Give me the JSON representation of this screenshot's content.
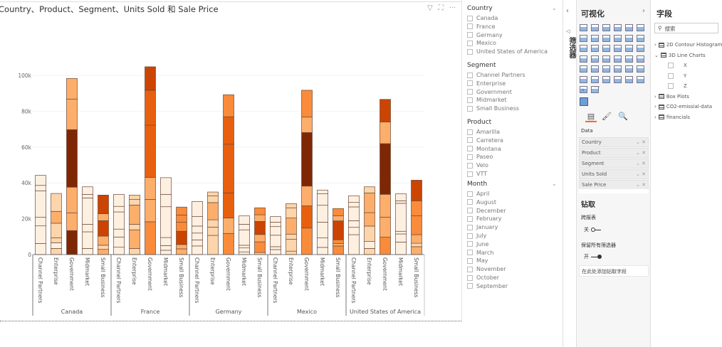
{
  "visual": {
    "title": "Country、Product、Segment、Units Sold 和 Sale Price",
    "header_icons": [
      "filter-icon",
      "focus-mode-icon",
      "more-options-icon"
    ]
  },
  "chart_data": {
    "type": "bar",
    "stacked": true,
    "title": "Country、Product、Segment、Units Sold 和 Sale Price",
    "ylim": [
      0,
      105000
    ],
    "y_ticks": [
      "0",
      "20k",
      "40k",
      "60k",
      "80k",
      "100k"
    ],
    "y_tick_values": [
      0,
      20000,
      40000,
      60000,
      80000,
      100000
    ],
    "grid": true,
    "legend": "none",
    "color_scale": [
      "#fef0e1",
      "#fdd5ab",
      "#fdae6b",
      "#f98b3a",
      "#e8600f",
      "#cc4402",
      "#7f2704"
    ],
    "groups": [
      {
        "country": "Canada",
        "bars": [
          {
            "segment": "Channel Partners",
            "stack_tops": [
              6.2,
              16,
              20.8,
              35.6,
              38.6,
              44.2
            ],
            "color_levels": [
              0,
              0,
              0,
              0,
              0,
              0
            ]
          },
          {
            "segment": "Enterprise",
            "stack_tops": [
              3.4,
              6.6,
              9.4,
              17.5,
              24.1,
              34.1
            ],
            "color_levels": [
              1,
              0,
              1,
              1,
              2,
              1
            ]
          },
          {
            "segment": "Government",
            "stack_tops": [
              13.4,
              23.3,
              37.6,
              69.7,
              86.8,
              98.3
            ],
            "color_levels": [
              6,
              2,
              2,
              6,
              2,
              2
            ]
          },
          {
            "segment": "Midmarket",
            "stack_tops": [
              3.4,
              12.7,
              16.9,
              31.6,
              33.6,
              37.8
            ],
            "color_levels": [
              0,
              0,
              0,
              0,
              0,
              0
            ]
          },
          {
            "segment": "Small Business",
            "stack_tops": [
              2.9,
              5.2,
              10.3,
              18.9,
              22.8,
              33.2
            ],
            "color_levels": [
              2,
              1,
              2,
              5,
              2,
              5
            ]
          }
        ]
      },
      {
        "country": "France",
        "bars": [
          {
            "segment": "Channel Partners",
            "stack_tops": [
              4.1,
              9.8,
              14.2,
              23.8,
              26.9,
              33.6
            ],
            "color_levels": [
              0,
              0,
              0,
              0,
              0,
              0
            ]
          },
          {
            "segment": "Enterprise",
            "stack_tops": [
              3.4,
              13.8,
              16.9,
              27.6,
              30.7,
              33.2
            ],
            "color_levels": [
              1,
              2,
              1,
              2,
              1,
              1
            ]
          },
          {
            "segment": "Government",
            "stack_tops": [
              18.3,
              30.8,
              43,
              72.2,
              91.7,
              104.8
            ],
            "color_levels": [
              3,
              2,
              2,
              4,
              4,
              5
            ]
          },
          {
            "segment": "Midmarket",
            "stack_tops": [
              2.4,
              5,
              9.5,
              26.7,
              33.6,
              42.9
            ],
            "color_levels": [
              0,
              0,
              0,
              0,
              0,
              0
            ]
          },
          {
            "segment": "Small Business",
            "stack_tops": [
              3.2,
              5.6,
              13,
              18,
              22.1,
              26.5
            ],
            "color_levels": [
              2,
              2,
              5,
              3,
              3,
              3
            ]
          }
        ]
      },
      {
        "country": "Germany",
        "bars": [
          {
            "segment": "Channel Partners",
            "stack_tops": [
              4.8,
              8.2,
              12,
              15.9,
              21.2,
              29.6
            ],
            "color_levels": [
              0,
              0,
              0,
              0,
              0,
              0
            ]
          },
          {
            "segment": "Enterprise",
            "stack_tops": [
              10.7,
              15.3,
              19.4,
              29,
              32.7,
              34.9
            ],
            "color_levels": [
              1,
              1,
              1,
              2,
              1,
              1
            ]
          },
          {
            "segment": "Government",
            "stack_tops": [
              11.8,
              20.4,
              34.4,
              61.6,
              76.9,
              89.2
            ],
            "color_levels": [
              3,
              2,
              4,
              4,
              4,
              3
            ]
          },
          {
            "segment": "Midmarket",
            "stack_tops": [
              1.5,
              3.7,
              5.2,
              13.8,
              16.9,
              21.6
            ],
            "color_levels": [
              0,
              0,
              0,
              0,
              0,
              0
            ]
          },
          {
            "segment": "Small Business",
            "stack_tops": [
              1.1,
              7.1,
              11.2,
              18.5,
              22.2,
              26.1
            ],
            "color_levels": [
              1,
              3,
              2,
              5,
              2,
              3
            ]
          }
        ]
      },
      {
        "country": "Mexico",
        "bars": [
          {
            "segment": "Channel Partners",
            "stack_tops": [
              2.8,
              4.4,
              10.8,
              15.6,
              18.1,
              21.2
            ],
            "color_levels": [
              0,
              0,
              0,
              0,
              0,
              0
            ]
          },
          {
            "segment": "Enterprise",
            "stack_tops": [
              1.9,
              8.5,
              11.4,
              20.4,
              26.1,
              28.4
            ],
            "color_levels": [
              1,
              1,
              1,
              2,
              1,
              1
            ]
          },
          {
            "segment": "Government",
            "stack_tops": [
              14.8,
              27.2,
              38.2,
              68.1,
              76.7,
              91.7
            ],
            "color_levels": [
              3,
              4,
              2,
              6,
              2,
              3
            ]
          },
          {
            "segment": "Midmarket",
            "stack_tops": [
              4,
              9.3,
              18.1,
              27.5,
              33.9,
              36
            ],
            "color_levels": [
              0,
              0,
              0,
              0,
              0,
              0
            ]
          },
          {
            "segment": "Small Business",
            "stack_tops": [
              4.8,
              6.1,
              8.3,
              18.8,
              21.7,
              25.7
            ],
            "color_levels": [
              3,
              2,
              3,
              5,
              2,
              3
            ]
          }
        ]
      },
      {
        "country": "United States of America",
        "bars": [
          {
            "segment": "Channel Partners",
            "stack_tops": [
              11.1,
              15.2,
              18.9,
              26.6,
              29.1,
              32.8
            ],
            "color_levels": [
              0,
              0,
              0,
              0,
              0,
              0
            ]
          },
          {
            "segment": "Enterprise",
            "stack_tops": [
              3.4,
              7.3,
              15.9,
              23.4,
              34.4,
              37.8
            ],
            "color_levels": [
              1,
              0,
              1,
              2,
              2,
              1
            ]
          },
          {
            "segment": "Government",
            "stack_tops": [
              9.7,
              20.9,
              33.6,
              61.9,
              74,
              86.6
            ],
            "color_levels": [
              3,
              2,
              2,
              6,
              2,
              5
            ]
          },
          {
            "segment": "Midmarket",
            "stack_tops": [
              7,
              11.5,
              13,
              28.6,
              30,
              33.9
            ],
            "color_levels": [
              0,
              0,
              0,
              0,
              0,
              0
            ]
          },
          {
            "segment": "Small Business",
            "stack_tops": [
              4.4,
              6.3,
              11.1,
              21.6,
              30,
              41.5
            ],
            "color_levels": [
              2,
              1,
              2,
              3,
              3,
              5
            ]
          }
        ]
      }
    ]
  },
  "slicers": [
    {
      "title": "Country",
      "items": [
        "Canada",
        "France",
        "Germany",
        "Mexico",
        "United States of America"
      ]
    },
    {
      "title": "Segment",
      "items": [
        "Channel Partners",
        "Enterprise",
        "Government",
        "Midmarket",
        "Small Business"
      ]
    },
    {
      "title": "Product",
      "items": [
        "Amarilla",
        "Carretera",
        "Montana",
        "Paseo",
        "Velo",
        "VTT"
      ]
    },
    {
      "title": "Month",
      "items": [
        "April",
        "August",
        "December",
        "February",
        "January",
        "July",
        "June",
        "March",
        "May",
        "November",
        "October",
        "September"
      ]
    }
  ],
  "filters_pane": {
    "label": "筛选器"
  },
  "visualizations": {
    "title": "可视化",
    "more": "···",
    "data_label": "Data",
    "wells": [
      "Country",
      "Product",
      "Segment",
      "Units Sold",
      "Sale Price"
    ],
    "drillthrough": {
      "title": "钻取",
      "cross_report": "跨报表",
      "cross_report_state": "关",
      "keep_filters": "保留所有筛选器",
      "keep_filters_state": "开",
      "drop_placeholder": "在此处添加钻取字段"
    }
  },
  "fields": {
    "title": "字段",
    "search_placeholder": "搜索",
    "tables": [
      {
        "name": "2D Contour Histogram",
        "expanded": false
      },
      {
        "name": "3D Line Charts",
        "expanded": true,
        "columns": [
          "X",
          "Y",
          "Z"
        ]
      },
      {
        "name": "Box Plots",
        "expanded": false
      },
      {
        "name": "CO2-emissial-data",
        "expanded": false
      },
      {
        "name": "financials",
        "expanded": false
      }
    ]
  }
}
